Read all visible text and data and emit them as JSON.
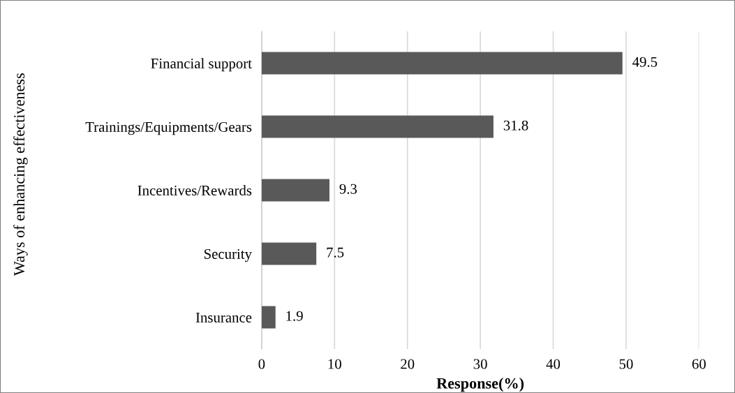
{
  "chart_data": {
    "type": "bar",
    "orientation": "horizontal",
    "categories": [
      "Financial support",
      "Trainings/Equipments/Gears",
      "Incentives/Rewards",
      "Security",
      "Insurance"
    ],
    "values": [
      49.5,
      31.8,
      9.3,
      7.5,
      1.9
    ],
    "color": "#595959",
    "xlabel": "Response(%)",
    "ylabel": "Ways of enhancing effectiveness",
    "xlim": [
      0,
      60
    ],
    "xticks": [
      0,
      10,
      20,
      30,
      40,
      50,
      60
    ],
    "grid": "x",
    "data_labels": true
  }
}
